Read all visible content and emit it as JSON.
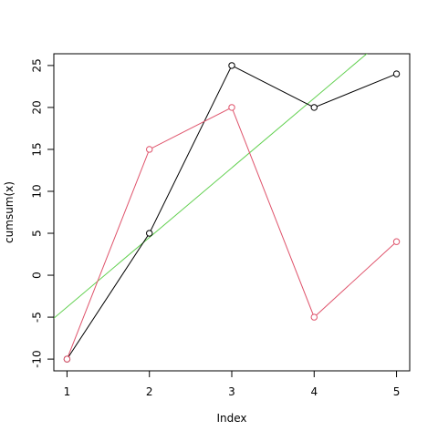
{
  "chart_data": {
    "type": "line",
    "x": [
      1,
      2,
      3,
      4,
      5
    ],
    "series": [
      {
        "color": "#000000",
        "values": [
          -10,
          5,
          25,
          20,
          24
        ]
      },
      {
        "color": "#df536b",
        "values": [
          -10,
          15,
          20,
          -5,
          4
        ]
      }
    ],
    "abline": {
      "intercept": -12.1,
      "slope": 8.3,
      "color": "#61d04f"
    },
    "xlim": [
      0.84,
      5.16
    ],
    "ylim": [
      -11.4,
      26.4
    ],
    "xticks": [
      1,
      2,
      3,
      4,
      5
    ],
    "yticks": [
      -10,
      -5,
      0,
      5,
      10,
      15,
      20,
      25
    ],
    "xlabel": "Index",
    "ylabel": "cumsum(x)"
  }
}
